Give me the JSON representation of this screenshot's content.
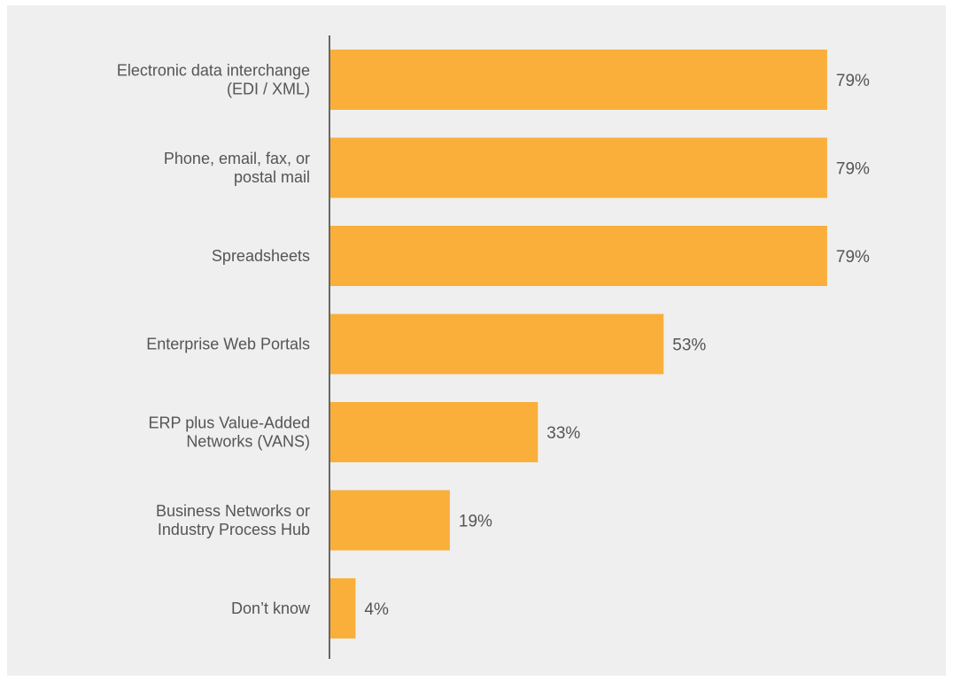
{
  "chart_data": {
    "type": "bar",
    "orientation": "horizontal",
    "categories": [
      [
        "Electronic data interchange",
        "(EDI / XML)"
      ],
      [
        "Phone, email, fax, or",
        "postal mail"
      ],
      [
        "Spreadsheets"
      ],
      [
        "Enterprise Web Portals"
      ],
      [
        "ERP plus Value-Added",
        "Networks (VANS)"
      ],
      [
        "Business Networks or",
        "Industry Process Hub"
      ],
      [
        "Don’t know"
      ]
    ],
    "values": [
      79,
      79,
      79,
      53,
      33,
      19,
      4
    ],
    "value_labels": [
      "79%",
      "79%",
      "79%",
      "53%",
      "33%",
      "19%",
      "4%"
    ],
    "xlim": [
      0,
      100
    ],
    "grid": false,
    "legend": "none",
    "colors": {
      "bar": "#f9af3a",
      "axis": "#666666",
      "panel": "#eeefee",
      "text": "#555555"
    }
  }
}
